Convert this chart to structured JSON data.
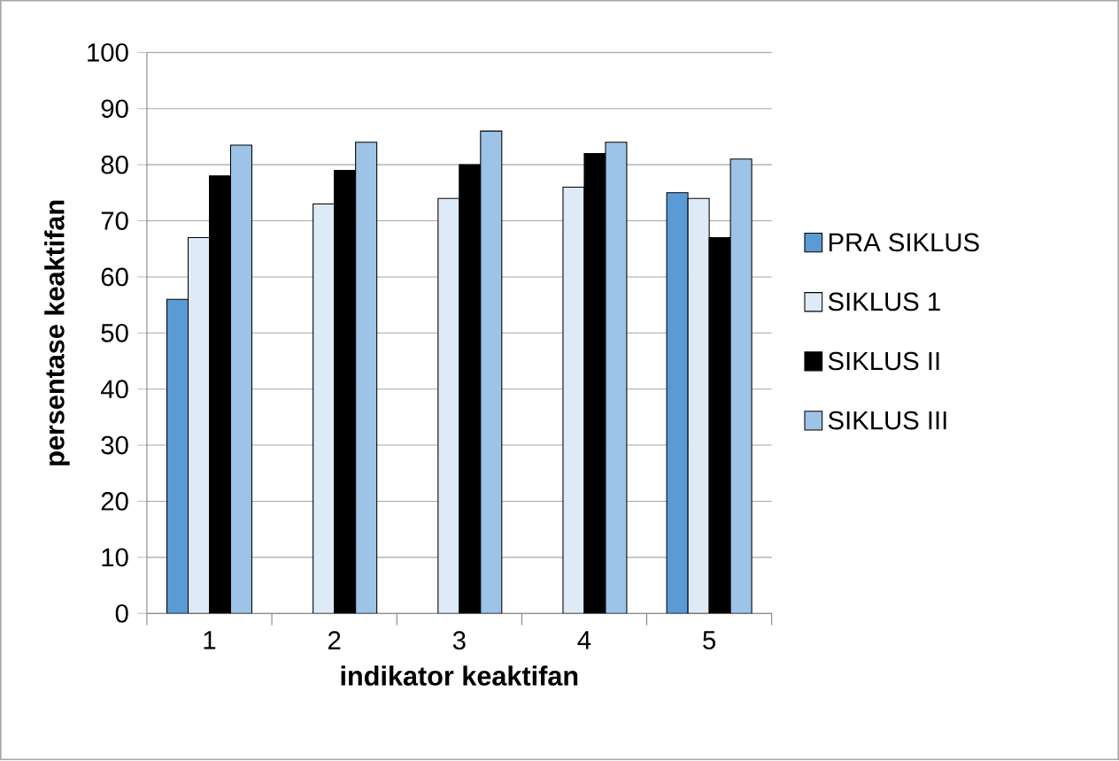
{
  "chart_data": {
    "type": "bar",
    "xlabel": "indikator keaktifan",
    "ylabel": "persentase keaktifan",
    "categories": [
      "1",
      "2",
      "3",
      "4",
      "5"
    ],
    "series": [
      {
        "name": "PRA SIKLUS",
        "color": "#5b9bd5",
        "values": [
          56,
          null,
          null,
          null,
          75
        ]
      },
      {
        "name": "SIKLUS 1",
        "color": "#deebf7",
        "values": [
          67,
          73,
          74,
          76,
          74
        ]
      },
      {
        "name": "SIKLUS II",
        "color": "#000000",
        "values": [
          78,
          79,
          80,
          82,
          67
        ]
      },
      {
        "name": "SIKLUS III",
        "color": "#9dc3e6",
        "values": [
          83.5,
          84,
          86,
          84,
          81
        ]
      }
    ],
    "ylim": [
      0,
      100
    ],
    "yticks": [
      0,
      10,
      20,
      30,
      40,
      50,
      60,
      70,
      80,
      90,
      100
    ],
    "grid": "y",
    "legend": "right"
  }
}
